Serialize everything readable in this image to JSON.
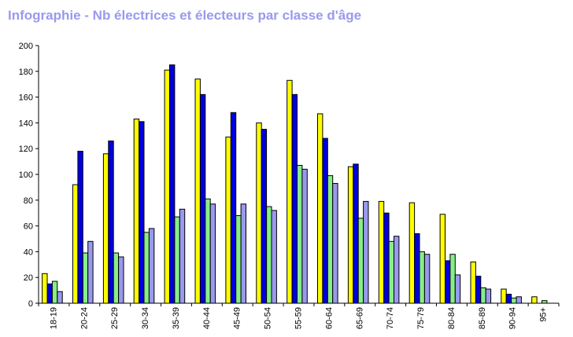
{
  "title": "Infographie - Nb électrices et électeurs par classe d'âge",
  "chart_data": {
    "type": "bar",
    "title": "Infographie - Nb électrices et électeurs par classe d'âge",
    "xlabel": "",
    "ylabel": "",
    "ylim": [
      0,
      200
    ],
    "yticks": [
      0,
      20,
      40,
      60,
      80,
      100,
      120,
      140,
      160,
      180,
      200
    ],
    "grid": false,
    "legend": "none",
    "categories": [
      "18-19",
      "20-24",
      "25-29",
      "30-34",
      "35-39",
      "40-44",
      "45-49",
      "50-54",
      "55-59",
      "60-64",
      "65-69",
      "70-74",
      "75-79",
      "80-84",
      "85-89",
      "90-94",
      "95+"
    ],
    "series": [
      {
        "color": "#ffff00",
        "values": [
          23,
          92,
          116,
          143,
          181,
          174,
          129,
          140,
          173,
          147,
          106,
          79,
          78,
          69,
          32,
          11,
          5
        ]
      },
      {
        "color": "#0000dd",
        "values": [
          15,
          118,
          126,
          141,
          185,
          162,
          148,
          135,
          162,
          128,
          108,
          70,
          54,
          33,
          21,
          7,
          0
        ]
      },
      {
        "color": "#88ee88",
        "values": [
          17,
          39,
          39,
          55,
          67,
          81,
          68,
          75,
          107,
          99,
          66,
          48,
          40,
          38,
          12,
          4,
          2
        ]
      },
      {
        "color": "#9999ee",
        "values": [
          9,
          48,
          36,
          58,
          73,
          77,
          77,
          72,
          104,
          93,
          79,
          52,
          38,
          22,
          11,
          5,
          0
        ]
      }
    ]
  }
}
